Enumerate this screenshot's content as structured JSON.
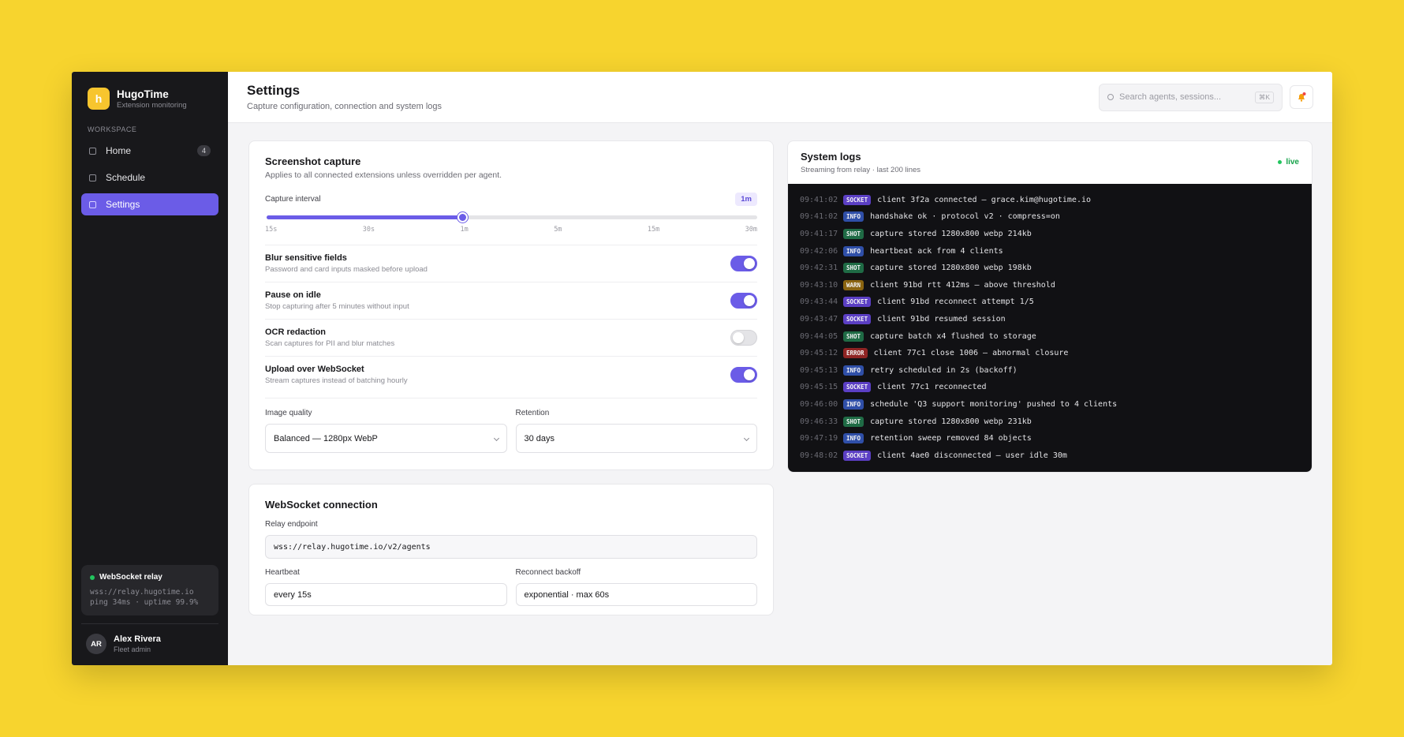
{
  "brand": {
    "initial": "h",
    "name": "HugoTime",
    "tagline": "Extension monitoring"
  },
  "sidebar": {
    "section": "WORKSPACE",
    "nav": [
      {
        "label": "Home",
        "badge": 4,
        "active": false
      },
      {
        "label": "Schedule",
        "active": false
      },
      {
        "label": "Settings",
        "active": true
      }
    ],
    "relay": {
      "title": "WebSocket relay",
      "url": "wss://relay.hugotime.io",
      "stats": "ping 34ms · uptime 99.9%"
    },
    "user": {
      "initials": "AR",
      "name": "Alex Rivera",
      "role": "Fleet admin"
    }
  },
  "header": {
    "title": "Settings",
    "subtitle": "Capture configuration, connection and system logs",
    "search_placeholder": "Search agents, sessions...",
    "shortcut": "⌘K"
  },
  "capture": {
    "title": "Screenshot capture",
    "subtitle": "Applies to all connected extensions unless overridden per agent.",
    "interval_label": "Capture interval",
    "interval_value": "1m",
    "interval_ticks": [
      "15s",
      "30s",
      "1m",
      "5m",
      "15m",
      "30m"
    ],
    "toggles": [
      {
        "label": "Blur sensitive fields",
        "description": "Password and card inputs masked before upload",
        "enabled": true
      },
      {
        "label": "Pause on idle",
        "description": "Stop capturing after 5 minutes without input",
        "enabled": true
      },
      {
        "label": "OCR redaction",
        "description": "Scan captures for PII and blur matches",
        "enabled": false
      },
      {
        "label": "Upload over WebSocket",
        "description": "Stream captures instead of batching hourly",
        "enabled": true
      }
    ],
    "quality": {
      "label": "Image quality",
      "value": "Balanced — 1280px WebP"
    },
    "retention": {
      "label": "Retention",
      "value": "30 days"
    }
  },
  "websocket": {
    "title": "WebSocket connection",
    "endpoint": {
      "label": "Relay endpoint",
      "value": "wss://relay.hugotime.io/v2/agents"
    },
    "heartbeat": {
      "label": "Heartbeat",
      "value": "every 15s"
    },
    "backoff": {
      "label": "Reconnect backoff",
      "value": "exponential · max 60s"
    }
  },
  "logs": {
    "title": "System logs",
    "subtitle": "Streaming from relay · last 200 lines",
    "status": "live",
    "entries": [
      {
        "time": "09:41:02",
        "level": "SOCKET",
        "color": "#5b3fc4",
        "message": "client 3f2a connected — grace.kim@hugotime.io"
      },
      {
        "time": "09:41:02",
        "level": "INFO",
        "color": "#2f4fa8",
        "message": "handshake ok · protocol v2 · compress=on"
      },
      {
        "time": "09:41:17",
        "level": "SHOT",
        "color": "#1f6b45",
        "message": "capture stored 1280x800 webp 214kb"
      },
      {
        "time": "09:42:06",
        "level": "INFO",
        "color": "#2f4fa8",
        "message": "heartbeat ack from 4 clients"
      },
      {
        "time": "09:42:31",
        "level": "SHOT",
        "color": "#1f6b45",
        "message": "capture stored 1280x800 webp 198kb"
      },
      {
        "time": "09:43:10",
        "level": "WARN",
        "color": "#8a6410",
        "message": "client 91bd rtt 412ms — above threshold"
      },
      {
        "time": "09:43:44",
        "level": "SOCKET",
        "color": "#5b3fc4",
        "message": "client 91bd reconnect attempt 1/5"
      },
      {
        "time": "09:43:47",
        "level": "SOCKET",
        "color": "#5b3fc4",
        "message": "client 91bd resumed session"
      },
      {
        "time": "09:44:05",
        "level": "SHOT",
        "color": "#1f6b45",
        "message": "capture batch x4 flushed to storage"
      },
      {
        "time": "09:45:12",
        "level": "ERROR",
        "color": "#8f2424",
        "message": "client 77c1 close 1006 — abnormal closure"
      },
      {
        "time": "09:45:13",
        "level": "INFO",
        "color": "#2f4fa8",
        "message": "retry scheduled in 2s (backoff)"
      },
      {
        "time": "09:45:15",
        "level": "SOCKET",
        "color": "#5b3fc4",
        "message": "client 77c1 reconnected"
      },
      {
        "time": "09:46:00",
        "level": "INFO",
        "color": "#2f4fa8",
        "message": "schedule 'Q3 support monitoring' pushed to 4 clients"
      },
      {
        "time": "09:46:33",
        "level": "SHOT",
        "color": "#1f6b45",
        "message": "capture stored 1280x800 webp 231kb"
      },
      {
        "time": "09:47:19",
        "level": "INFO",
        "color": "#2f4fa8",
        "message": "retention sweep removed 84 objects"
      },
      {
        "time": "09:48:02",
        "level": "SOCKET",
        "color": "#5b3fc4",
        "message": "client 4ae0 disconnected — user idle 30m"
      }
    ]
  }
}
